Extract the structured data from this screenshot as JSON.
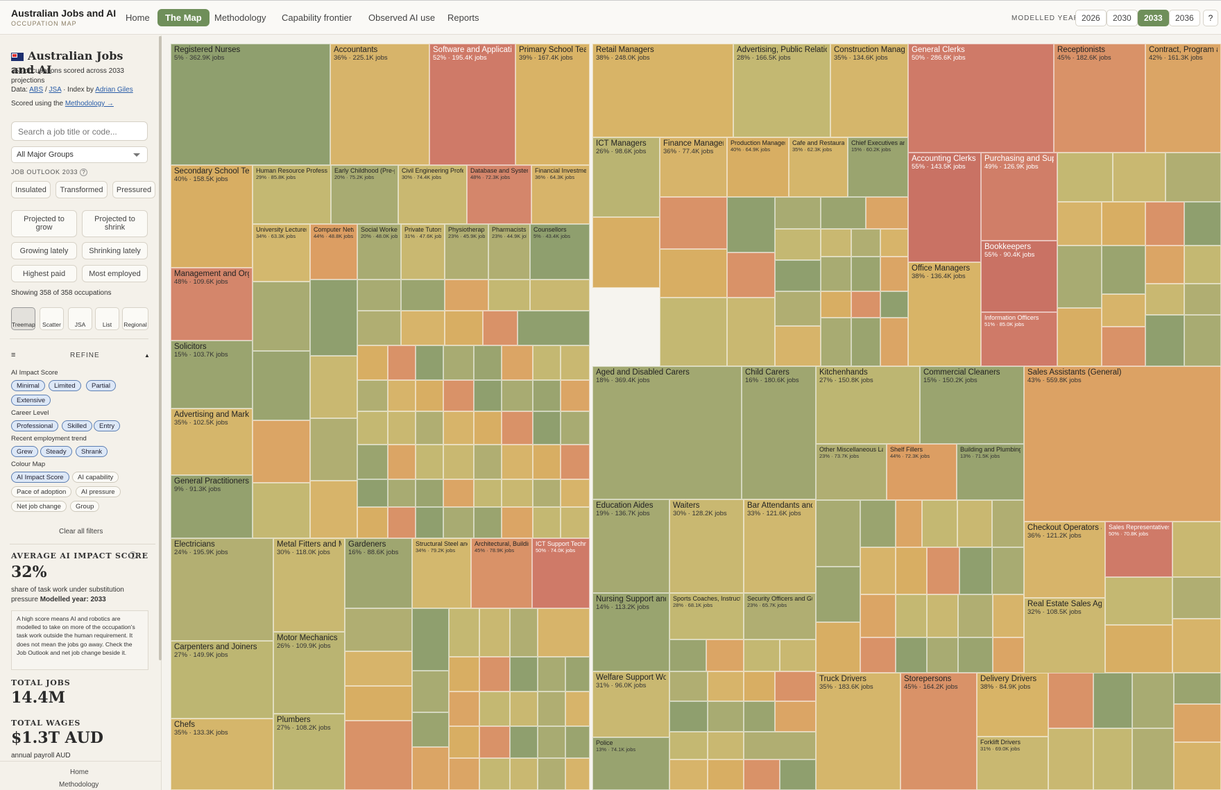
{
  "header": {
    "title": "Australian Jobs and AI",
    "subtitle": "OCCUPATION MAP",
    "nav": [
      "Home",
      "The Map",
      "Methodology",
      "Capability frontier",
      "Observed AI use",
      "Reports"
    ],
    "modelled_year_label": "MODELLED YEAR",
    "years": [
      "2026",
      "2030",
      "2033",
      "2036"
    ],
    "active_year": "2033",
    "help": "?"
  },
  "sidebar": {
    "title": "Australian Jobs and AI",
    "summary": "358 occupations scored across 2033 projections",
    "data_prefix": "Data:",
    "abs": "ABS",
    "sep": "/",
    "jsa": "JSA",
    "index_by": "· Index by",
    "author": "Adrian Giles",
    "scored": "Scored using the",
    "methodology_link": "Methodology →",
    "search_placeholder": "Search a job title or code...",
    "group_select": "All Major Groups",
    "outlook_label": "JOB OUTLOOK",
    "outlook_year": "2033",
    "outlook_buttons": [
      "Insulated",
      "Transformed",
      "Pressured"
    ],
    "filter_buttons": [
      "Projected to grow",
      "Projected to shrink",
      "Growing lately",
      "Shrinking lately",
      "Highest paid",
      "Most employed"
    ],
    "showing": "Showing 358 of 358 occupations",
    "views": [
      "Treemap",
      "Scatter",
      "JSA",
      "List",
      "Regional"
    ],
    "refine": "REFINE",
    "ai_impact_label": "AI Impact Score",
    "ai_impact_chips": [
      "Minimal",
      "Limited",
      "Partial",
      "Extensive"
    ],
    "career_label": "Career Level",
    "career_chips": [
      "Professional",
      "Skilled",
      "Entry"
    ],
    "trend_label": "Recent employment trend",
    "trend_chips": [
      "Grew",
      "Steady",
      "Shrank"
    ],
    "colour_label": "Colour Map",
    "colour_chips": [
      "AI Impact Score",
      "AI capability",
      "Pace of adoption",
      "AI pressure",
      "Net job change",
      "Group"
    ],
    "clear": "Clear all filters",
    "avg_label": "AVERAGE AI IMPACT SCORE",
    "avg_value": "32%",
    "avg_desc": "share of task work under substitution pressure",
    "modelled_label": "Modelled year:",
    "modelled_year": "2033",
    "note": "A high score means AI and robotics are modelled to take on more of the occupation's task work outside the human requirement. It does not mean the jobs go away. Check the Job Outlook and net job change beside it.",
    "total_jobs_label": "TOTAL JOBS",
    "total_jobs": "14.4M",
    "total_wages_label": "TOTAL WAGES",
    "total_wages": "$1.3T AUD",
    "wages_desc": "annual payroll AUD",
    "footer_links": [
      "Home",
      "Methodology"
    ]
  },
  "colors": {
    "accent": "#6f8f5a",
    "low": "#8f9f6e",
    "mid": "#d7b46a",
    "high": "#cf7a68"
  },
  "treemap": [
    {
      "n": "Registered Nurses",
      "s": "5% · 362.9K jobs",
      "c": "#8f9f6e"
    },
    {
      "n": "Accountants",
      "s": "36% · 225.1K jobs",
      "c": "#d7b46a"
    },
    {
      "n": "Software and Applications Programmers",
      "s": "52% · 195.4K jobs",
      "c": "#cf7a68"
    },
    {
      "n": "Primary School Teachers",
      "s": "39% · 167.4K jobs",
      "c": "#d9b366"
    },
    {
      "n": "Secondary School Teachers",
      "s": "40% · 158.5K jobs",
      "c": "#d8ae63"
    },
    {
      "n": "Human Resource Professionals",
      "s": "29% · 85.8K jobs",
      "c": "#c4b872"
    },
    {
      "n": "Early Childhood (Pre-primary School) Teachers",
      "s": "20% · 75.2K jobs",
      "c": "#a8ab72"
    },
    {
      "n": "Civil Engineering Professionals",
      "s": "30% · 74.4K jobs",
      "c": "#c9b871"
    },
    {
      "n": "Database and Systems Administrators",
      "s": "48% · 72.3K jobs",
      "c": "#d4866b"
    },
    {
      "n": "Financial Investment Advisers",
      "s": "36% · 64.3K jobs",
      "c": "#d7b46a"
    },
    {
      "n": "Management and Organisation Analysts",
      "s": "48% · 109.6K jobs",
      "c": "#d4866b"
    },
    {
      "n": "University Lecturers",
      "s": "34% · 63.3K jobs",
      "c": "#d3b86e"
    },
    {
      "n": "Computer Network Professionals",
      "s": "44% · 48.8K jobs",
      "c": "#dc9e63"
    },
    {
      "n": "Social Workers",
      "s": "20% · 48.0K jobs",
      "c": "#a8ab72"
    },
    {
      "n": "Private Tutors and Teachers",
      "s": "31% · 47.6K jobs",
      "c": "#c9b871"
    },
    {
      "n": "Physiotherapists",
      "s": "23% · 45.9K jobs",
      "c": "#b0ae72"
    },
    {
      "n": "Pharmacists",
      "s": "23% · 44.9K jobs",
      "c": "#b0ae72"
    },
    {
      "n": "Counsellors",
      "s": "5% · 43.4K jobs",
      "c": "#8f9f6e"
    },
    {
      "n": "Solicitors",
      "s": "15% · 103.7K jobs",
      "c": "#9aa46f"
    },
    {
      "n": "Advertising and Marketing Professionals",
      "s": "35% · 102.5K jobs",
      "c": "#d5b66b"
    },
    {
      "n": "General Practitioners",
      "s": "9% · 91.3K jobs",
      "c": "#94a16e"
    },
    {
      "n": "Retail Managers",
      "s": "38% · 248.0K jobs",
      "c": "#d8b467"
    },
    {
      "n": "Advertising, Public Relations and Sales Managers",
      "s": "28% · 166.5K jobs",
      "c": "#c3b872"
    },
    {
      "n": "Construction Managers",
      "s": "35% · 134.6K jobs",
      "c": "#d5b66b"
    },
    {
      "n": "ICT Managers",
      "s": "26% · 98.6K jobs",
      "c": "#bab472"
    },
    {
      "n": "Finance Managers",
      "s": "36% · 77.4K jobs",
      "c": "#d7b46a"
    },
    {
      "n": "Production Managers",
      "s": "40% · 64.9K jobs",
      "c": "#d8ae63"
    },
    {
      "n": "Cafe and Restaurant Managers",
      "s": "35% · 62.3K jobs",
      "c": "#d5b66b"
    },
    {
      "n": "Chief Executives and Managing Directors",
      "s": "15% · 60.2K jobs",
      "c": "#9aa46f"
    },
    {
      "n": "General Clerks",
      "s": "50% · 286.6K jobs",
      "c": "#cf7a68"
    },
    {
      "n": "Receptionists",
      "s": "45% · 182.6K jobs",
      "c": "#d99268"
    },
    {
      "n": "Contract, Program and Project Administrators",
      "s": "42% · 161.3K jobs",
      "c": "#dba565"
    },
    {
      "n": "Accounting Clerks",
      "s": "55% · 143.5K jobs",
      "c": "#c97264"
    },
    {
      "n": "Purchasing and Supply Logistics Clerks",
      "s": "49% · 126.9K jobs",
      "c": "#d07e68"
    },
    {
      "n": "Bookkeepers",
      "s": "55% · 90.4K jobs",
      "c": "#c97264"
    },
    {
      "n": "Office Managers",
      "s": "38% · 136.4K jobs",
      "c": "#d8b467"
    },
    {
      "n": "Information Officers",
      "s": "51% · 85.0K jobs",
      "c": "#cf7a68"
    },
    {
      "n": "Aged and Disabled Carers",
      "s": "18% · 369.4K jobs",
      "c": "#a2a871"
    },
    {
      "n": "Child Carers",
      "s": "16% · 180.6K jobs",
      "c": "#9fa670"
    },
    {
      "n": "Education Aides",
      "s": "19% · 136.7K jobs",
      "c": "#a5a971"
    },
    {
      "n": "Waiters",
      "s": "30% · 128.2K jobs",
      "c": "#c9b871"
    },
    {
      "n": "Bar Attendants and Baristas",
      "s": "33% · 121.6K jobs",
      "c": "#d0b86f"
    },
    {
      "n": "Nursing Support and Personal Care Workers",
      "s": "14% · 113.2K jobs",
      "c": "#99a46f"
    },
    {
      "n": "Sports Coaches, Instructors and Officials",
      "s": "28% · 68.1K jobs",
      "c": "#c3b872"
    },
    {
      "n": "Security Officers and Guards",
      "s": "23% · 65.7K jobs",
      "c": "#b0ae72"
    },
    {
      "n": "Welfare Support Workers",
      "s": "31% · 96.0K jobs",
      "c": "#c9b871"
    },
    {
      "n": "Police",
      "s": "13% · 74.1K jobs",
      "c": "#98a36f"
    },
    {
      "n": "Kitchenhands",
      "s": "27% · 150.8K jobs",
      "c": "#bdb672"
    },
    {
      "n": "Commercial Cleaners",
      "s": "15% · 150.2K jobs",
      "c": "#9aa46f"
    },
    {
      "n": "Sales Assistants (General)",
      "s": "43% · 559.8K jobs",
      "c": "#dca264"
    },
    {
      "n": "Other Miscellaneous Labourers",
      "s": "23% · 73.7K jobs",
      "c": "#b0ae72"
    },
    {
      "n": "Shelf Fillers",
      "s": "44% · 72.3K jobs",
      "c": "#dc9e63"
    },
    {
      "n": "Building and Plumbing Labourers",
      "s": "13% · 71.5K jobs",
      "c": "#98a36f"
    },
    {
      "n": "Checkout Operators and Office Cashiers",
      "s": "36% · 121.2K jobs",
      "c": "#d7b46a"
    },
    {
      "n": "Sales Representatives",
      "s": "50% · 70.8K jobs",
      "c": "#cf7a68"
    },
    {
      "n": "Real Estate Sales Agents",
      "s": "32% · 108.5K jobs",
      "c": "#ccb870"
    },
    {
      "n": "Electricians",
      "s": "24% · 195.9K jobs",
      "c": "#b3af72"
    },
    {
      "n": "Metal Fitters and Machinists",
      "s": "30% · 118.0K jobs",
      "c": "#c9b871"
    },
    {
      "n": "Gardeners",
      "s": "16% · 88.6K jobs",
      "c": "#9fa670"
    },
    {
      "n": "Structural Steel and Welding Trades Workers",
      "s": "34% · 79.2K jobs",
      "c": "#d3b86e"
    },
    {
      "n": "Architectural, Building and Surveying Technicians",
      "s": "45% · 78.9K jobs",
      "c": "#d99268"
    },
    {
      "n": "ICT Support Technicians",
      "s": "50% · 74.0K jobs",
      "c": "#cf7a68"
    },
    {
      "n": "Carpenters and Joiners",
      "s": "27% · 149.9K jobs",
      "c": "#bdb672"
    },
    {
      "n": "Motor Mechanics",
      "s": "26% · 109.9K jobs",
      "c": "#bab472"
    },
    {
      "n": "Chefs",
      "s": "35% · 133.3K jobs",
      "c": "#d5b66b"
    },
    {
      "n": "Plumbers",
      "s": "27% · 108.2K jobs",
      "c": "#bdb672"
    },
    {
      "n": "Truck Drivers",
      "s": "35% · 183.6K jobs",
      "c": "#d5b66b"
    },
    {
      "n": "Storepersons",
      "s": "45% · 164.2K jobs",
      "c": "#d99268"
    },
    {
      "n": "Delivery Drivers",
      "s": "38% · 84.9K jobs",
      "c": "#d8b467"
    },
    {
      "n": "Forklift Drivers",
      "s": "31% · 69.0K jobs",
      "c": "#c9b871"
    }
  ]
}
